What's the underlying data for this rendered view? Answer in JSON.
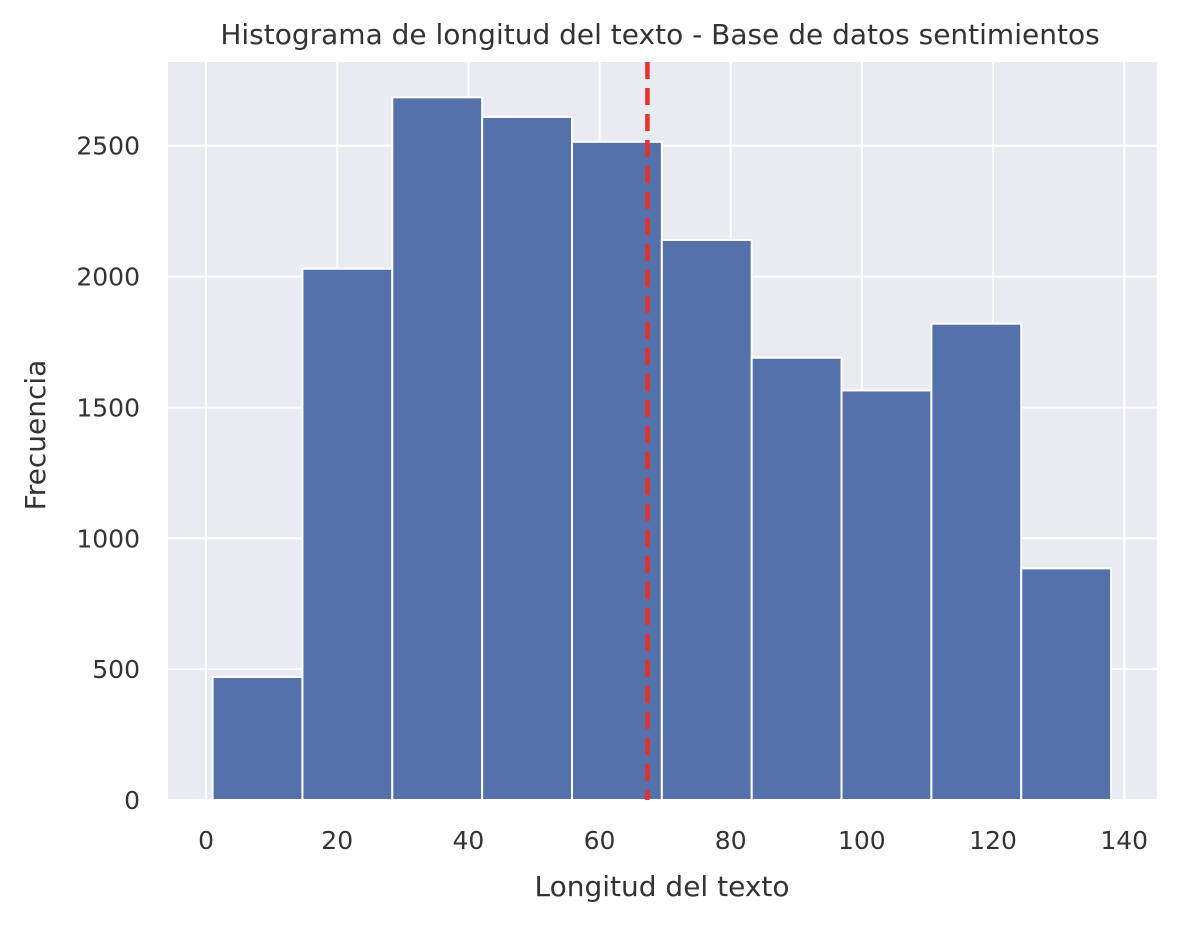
{
  "chart_data": {
    "type": "bar",
    "title": "Histograma de longitud del texto - Base de datos sentimientos",
    "xlabel": "Longitud del texto",
    "ylabel": "Frecuencia",
    "xlim": [
      -5.8,
      145
    ],
    "ylim": [
      0,
      2820
    ],
    "xticks": [
      0,
      20,
      40,
      60,
      80,
      100,
      120,
      140
    ],
    "yticks": [
      0,
      500,
      1000,
      1500,
      2000,
      2500
    ],
    "bins": [
      {
        "x0": 1,
        "x1": 14.7,
        "value": 470
      },
      {
        "x0": 14.7,
        "x1": 28.4,
        "value": 2030
      },
      {
        "x0": 28.4,
        "x1": 42.1,
        "value": 2685
      },
      {
        "x0": 42.1,
        "x1": 55.8,
        "value": 2610
      },
      {
        "x0": 55.8,
        "x1": 69.5,
        "value": 2515
      },
      {
        "x0": 69.5,
        "x1": 83.2,
        "value": 2140
      },
      {
        "x0": 83.2,
        "x1": 96.9,
        "value": 1690
      },
      {
        "x0": 96.9,
        "x1": 110.6,
        "value": 1565
      },
      {
        "x0": 110.6,
        "x1": 124.3,
        "value": 1820
      },
      {
        "x0": 124.3,
        "x1": 138,
        "value": 885
      }
    ],
    "reference_line": {
      "x": 67.3,
      "style": "dashed",
      "color": "#e8302a"
    },
    "grid": true,
    "colors": {
      "bar": "#5471ab",
      "bar_edge": "#ffffff",
      "plot_background": "#eaeaf2",
      "grid": "#ffffff"
    }
  }
}
